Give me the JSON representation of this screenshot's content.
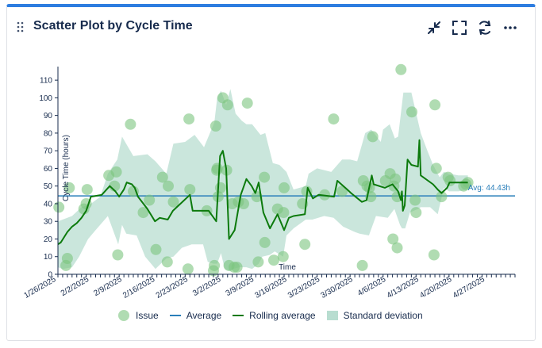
{
  "header": {
    "title": "Scatter Plot by Cycle Time",
    "icons": [
      "drag-handle-icon",
      "collapse-icon",
      "fullscreen-icon",
      "refresh-icon",
      "more-icon"
    ]
  },
  "legend": {
    "issue": "Issue",
    "average": "Average",
    "rolling": "Rolling average",
    "stddev": "Standard deviation"
  },
  "colors": {
    "accent": "#2d7de0",
    "issue": "#7cc47e",
    "average": "#2a7fba",
    "rolling": "#0c7a0c",
    "stddev": "#b8ddd0"
  },
  "chart_data": {
    "type": "scatter",
    "xlabel": "Time",
    "ylabel": "Cycle Time (hours)",
    "ylim": [
      0,
      115
    ],
    "yticks": [
      0,
      10,
      20,
      30,
      40,
      50,
      60,
      70,
      80,
      90,
      100,
      110
    ],
    "xlim": [
      0,
      97
    ],
    "xticks": [
      {
        "day": 0,
        "label": "1/26/2025"
      },
      {
        "day": 7,
        "label": "2/2/2025"
      },
      {
        "day": 14,
        "label": "2/9/2025"
      },
      {
        "day": 21,
        "label": "2/16/2025"
      },
      {
        "day": 28,
        "label": "2/23/2025"
      },
      {
        "day": 35,
        "label": "3/2/2025"
      },
      {
        "day": 42,
        "label": "3/9/2025"
      },
      {
        "day": 49,
        "label": "3/16/2025"
      },
      {
        "day": 56,
        "label": "3/23/2025"
      },
      {
        "day": 63,
        "label": "3/30/2025"
      },
      {
        "day": 70,
        "label": "4/6/2025"
      },
      {
        "day": 77,
        "label": "4/13/2025"
      },
      {
        "day": 84,
        "label": "4/20/2025"
      },
      {
        "day": 91,
        "label": "4/27/2025"
      }
    ],
    "average": {
      "value": 44.43,
      "label": "Avg: 44.43h"
    },
    "issues": [
      [
        0.2,
        38
      ],
      [
        1.7,
        5
      ],
      [
        2.0,
        9
      ],
      [
        2.4,
        49
      ],
      [
        5.5,
        37
      ],
      [
        6.0,
        40
      ],
      [
        6.2,
        48
      ],
      [
        10.8,
        56
      ],
      [
        12.0,
        50
      ],
      [
        12.4,
        58
      ],
      [
        12.7,
        11
      ],
      [
        15.4,
        85
      ],
      [
        16.0,
        47
      ],
      [
        18.1,
        35
      ],
      [
        19.4,
        42
      ],
      [
        20.8,
        14
      ],
      [
        22.2,
        55
      ],
      [
        23.2,
        7
      ],
      [
        23.4,
        50
      ],
      [
        24.5,
        41
      ],
      [
        27.6,
        3
      ],
      [
        27.8,
        88
      ],
      [
        28.0,
        48
      ],
      [
        31.6,
        36
      ],
      [
        33.0,
        2
      ],
      [
        33.2,
        5
      ],
      [
        33.5,
        84
      ],
      [
        33.7,
        59
      ],
      [
        33.8,
        60
      ],
      [
        34.0,
        44
      ],
      [
        34.5,
        49
      ],
      [
        35.0,
        100
      ],
      [
        35.8,
        59
      ],
      [
        36.0,
        96
      ],
      [
        36.3,
        5
      ],
      [
        37.0,
        40
      ],
      [
        37.4,
        4
      ],
      [
        38.0,
        4
      ],
      [
        38.3,
        41
      ],
      [
        39.4,
        40
      ],
      [
        40.2,
        97
      ],
      [
        42.2,
        44
      ],
      [
        42.5,
        7
      ],
      [
        43.8,
        55
      ],
      [
        43.9,
        18
      ],
      [
        45.8,
        8
      ],
      [
        46.6,
        37
      ],
      [
        47.8,
        10
      ],
      [
        47.9,
        35
      ],
      [
        48.0,
        49
      ],
      [
        51.9,
        40
      ],
      [
        52.4,
        17
      ],
      [
        52.8,
        47
      ],
      [
        56.6,
        45
      ],
      [
        58.5,
        88
      ],
      [
        60.3,
        47
      ],
      [
        64.6,
        5
      ],
      [
        64.8,
        53
      ],
      [
        65.6,
        50
      ],
      [
        66.1,
        49
      ],
      [
        66.4,
        44
      ],
      [
        66.8,
        78
      ],
      [
        69.5,
        53
      ],
      [
        70.5,
        57
      ],
      [
        71.1,
        20
      ],
      [
        71.3,
        50
      ],
      [
        71.6,
        54
      ],
      [
        72.0,
        44
      ],
      [
        72.0,
        15
      ],
      [
        72.8,
        116
      ],
      [
        75.1,
        92
      ],
      [
        75.8,
        42
      ],
      [
        76.0,
        35
      ],
      [
        79.8,
        11
      ],
      [
        80.0,
        96
      ],
      [
        80.3,
        60
      ],
      [
        81.4,
        44
      ],
      [
        82.8,
        55
      ],
      [
        83.2,
        53
      ],
      [
        86.1,
        50
      ],
      [
        86.6,
        51
      ],
      [
        87.0,
        52
      ]
    ],
    "rolling": [
      [
        0,
        17
      ],
      [
        0.6,
        18
      ],
      [
        2,
        24
      ],
      [
        3,
        27
      ],
      [
        4,
        29
      ],
      [
        5,
        32
      ],
      [
        6,
        36
      ],
      [
        7,
        44
      ],
      [
        9.3,
        45
      ],
      [
        11,
        50
      ],
      [
        12.2,
        47
      ],
      [
        13,
        44
      ],
      [
        14,
        48
      ],
      [
        14.6,
        52
      ],
      [
        15.7,
        51
      ],
      [
        16.3,
        49
      ],
      [
        17,
        44
      ],
      [
        19,
        37
      ],
      [
        20.6,
        30
      ],
      [
        21.6,
        32
      ],
      [
        23.3,
        31
      ],
      [
        24.4,
        36
      ],
      [
        26,
        40
      ],
      [
        28,
        45
      ],
      [
        28.6,
        36
      ],
      [
        32,
        36
      ],
      [
        33.6,
        30
      ],
      [
        34.4,
        67
      ],
      [
        35,
        70
      ],
      [
        35.7,
        60
      ],
      [
        36.3,
        20
      ],
      [
        37.5,
        25
      ],
      [
        38.8,
        45
      ],
      [
        40,
        54
      ],
      [
        41.1,
        50
      ],
      [
        41.9,
        46
      ],
      [
        42.6,
        52
      ],
      [
        43.6,
        35
      ],
      [
        45,
        26
      ],
      [
        46.6,
        34
      ],
      [
        48,
        25
      ],
      [
        49,
        32
      ],
      [
        50,
        33
      ],
      [
        52.4,
        34
      ],
      [
        53,
        49
      ],
      [
        54.1,
        43
      ],
      [
        55.3,
        45
      ],
      [
        58.6,
        44
      ],
      [
        59.3,
        53
      ],
      [
        61.4,
        48
      ],
      [
        62.2,
        46
      ],
      [
        64.5,
        41
      ],
      [
        65.5,
        42
      ],
      [
        66.6,
        56
      ],
      [
        67,
        51
      ],
      [
        69.4,
        49
      ],
      [
        71,
        51
      ],
      [
        72.2,
        47
      ],
      [
        72.8,
        42
      ],
      [
        73,
        47
      ],
      [
        73.2,
        36
      ],
      [
        73.6,
        39
      ],
      [
        74.2,
        65
      ],
      [
        75,
        62
      ],
      [
        76.4,
        61
      ],
      [
        76.7,
        76
      ],
      [
        77,
        56
      ],
      [
        79.6,
        51
      ],
      [
        80.6,
        48
      ],
      [
        81.4,
        46
      ],
      [
        82.6,
        49
      ],
      [
        83.1,
        52
      ],
      [
        87,
        52
      ]
    ],
    "stddev_upper": [
      [
        0,
        30
      ],
      [
        3,
        33
      ],
      [
        5,
        38
      ],
      [
        7,
        40
      ],
      [
        9,
        44
      ],
      [
        10.6,
        57
      ],
      [
        12.6,
        65
      ],
      [
        13.6,
        78
      ],
      [
        16,
        67
      ],
      [
        19,
        68
      ],
      [
        20.7,
        64
      ],
      [
        23,
        57
      ],
      [
        24.5,
        74
      ],
      [
        27,
        75
      ],
      [
        29,
        79
      ],
      [
        31,
        72
      ],
      [
        32.4,
        81
      ],
      [
        33.2,
        86
      ],
      [
        33.8,
        100
      ],
      [
        34.6,
        104
      ],
      [
        35.7,
        96
      ],
      [
        36.6,
        105
      ],
      [
        37.7,
        91
      ],
      [
        39,
        87
      ],
      [
        40,
        85
      ],
      [
        41.2,
        85
      ],
      [
        43,
        79
      ],
      [
        44,
        80
      ],
      [
        45.6,
        63
      ],
      [
        47,
        62
      ],
      [
        48.5,
        58
      ],
      [
        50,
        48
      ],
      [
        52.6,
        50
      ],
      [
        53.2,
        57
      ],
      [
        55,
        60
      ],
      [
        58,
        58
      ],
      [
        60.3,
        65
      ],
      [
        62,
        65
      ],
      [
        63.5,
        64
      ],
      [
        65.2,
        80
      ],
      [
        66.5,
        82
      ],
      [
        68.5,
        75
      ],
      [
        69,
        82
      ],
      [
        70.4,
        85
      ],
      [
        71.5,
        77
      ],
      [
        72.2,
        78
      ],
      [
        73.3,
        103
      ],
      [
        75,
        103
      ],
      [
        77,
        80
      ],
      [
        78.4,
        70
      ],
      [
        79.6,
        62
      ],
      [
        81,
        55
      ],
      [
        81.9,
        58
      ],
      [
        83,
        57
      ],
      [
        85,
        56
      ],
      [
        87,
        56
      ]
    ],
    "stddev_lower": [
      [
        87,
        48
      ],
      [
        85,
        47
      ],
      [
        83,
        47
      ],
      [
        81.9,
        49
      ],
      [
        80.6,
        34
      ],
      [
        79,
        38
      ],
      [
        77,
        38
      ],
      [
        76.4,
        37
      ],
      [
        75.5,
        36
      ],
      [
        74.7,
        35
      ],
      [
        73.7,
        26
      ],
      [
        73,
        26
      ],
      [
        72.6,
        28
      ],
      [
        71.4,
        37
      ],
      [
        70,
        32
      ],
      [
        67.5,
        33
      ],
      [
        66,
        22
      ],
      [
        64,
        23
      ],
      [
        63,
        24
      ],
      [
        60.5,
        27
      ],
      [
        58.5,
        32
      ],
      [
        56.5,
        33
      ],
      [
        54,
        31
      ],
      [
        52.6,
        31
      ],
      [
        50,
        26
      ],
      [
        48.5,
        22
      ],
      [
        47.8,
        10
      ],
      [
        46,
        13
      ],
      [
        45,
        11
      ],
      [
        43.4,
        10
      ],
      [
        42.6,
        6
      ],
      [
        41.2,
        3
      ],
      [
        40,
        4
      ],
      [
        38.5,
        4
      ],
      [
        37.2,
        3
      ],
      [
        36.3,
        2
      ],
      [
        35.4,
        3
      ],
      [
        34.6,
        12
      ],
      [
        33.8,
        6
      ],
      [
        33,
        6
      ],
      [
        31.8,
        7
      ],
      [
        30.8,
        17
      ],
      [
        28.4,
        17
      ],
      [
        26.3,
        15
      ],
      [
        24.5,
        10
      ],
      [
        23,
        9
      ],
      [
        20.7,
        3
      ],
      [
        18.5,
        10
      ],
      [
        16.7,
        22
      ],
      [
        14.5,
        23
      ],
      [
        13.6,
        28
      ],
      [
        12.8,
        17
      ],
      [
        10.6,
        33
      ],
      [
        8,
        25
      ],
      [
        6.4,
        20
      ],
      [
        4.5,
        10
      ],
      [
        3,
        4
      ],
      [
        1,
        3
      ],
      [
        0,
        4
      ]
    ]
  }
}
